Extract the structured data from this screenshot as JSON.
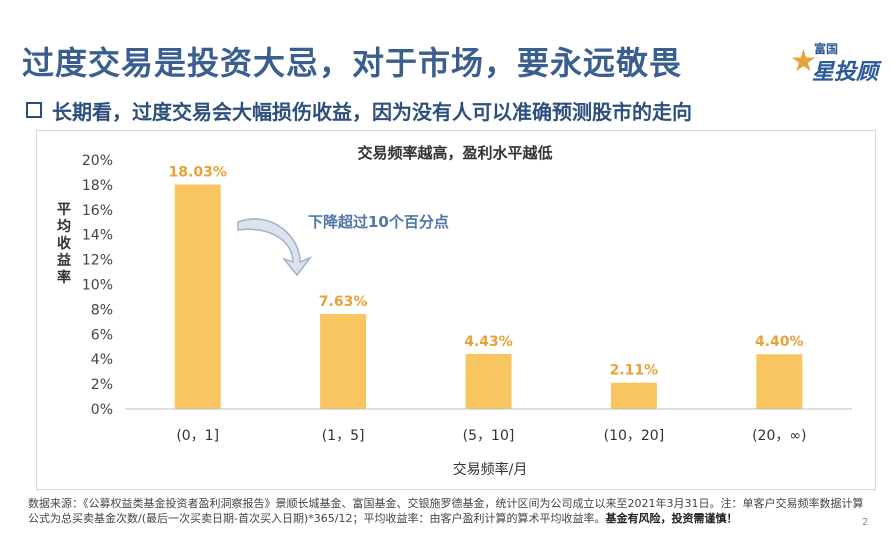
{
  "header": {
    "title": "过度交易是投资大忌，对于市场，要永远敬畏",
    "subtitle": "长期看，过度交易会大幅损伤收益，因为没有人可以准确预测股市的走向"
  },
  "logo": {
    "top": "富国",
    "main": "星投顾"
  },
  "annotation": "下降超过10个百分点",
  "chart_data": {
    "type": "bar",
    "title": "交易频率越高，盈利水平越低",
    "xlabel": "交易频率/月",
    "ylabel": "平均收益率",
    "categories": [
      "(0，1]",
      "(1，5]",
      "(5，10]",
      "(10，20]",
      "(20，∞)"
    ],
    "values": [
      18.03,
      7.63,
      4.43,
      2.11,
      4.4
    ],
    "value_labels": [
      "18.03%",
      "7.63%",
      "4.43%",
      "2.11%",
      "4.40%"
    ],
    "yticks": [
      "0%",
      "2%",
      "4%",
      "6%",
      "8%",
      "10%",
      "12%",
      "14%",
      "16%",
      "18%",
      "20%"
    ],
    "ylim": [
      0,
      20
    ],
    "grid": false,
    "bar_color": "#f9c560",
    "label_color": "#e8a23a"
  },
  "footer": {
    "source": "数据来源：《公募权益类基金投资者盈利洞察报告》景顺长城基金、富国基金、交银施罗德基金，统计区间为公司成立以来至2021年3月31日。注：单客户交易频率数据计算公式为总买卖基金次数/(最后一次买卖日期-首次买入日期)*365/12；平均收益率：由客户盈利计算的算术平均收益率。",
    "risk": "基金有风险，投资需谨慎！",
    "page": "2"
  }
}
